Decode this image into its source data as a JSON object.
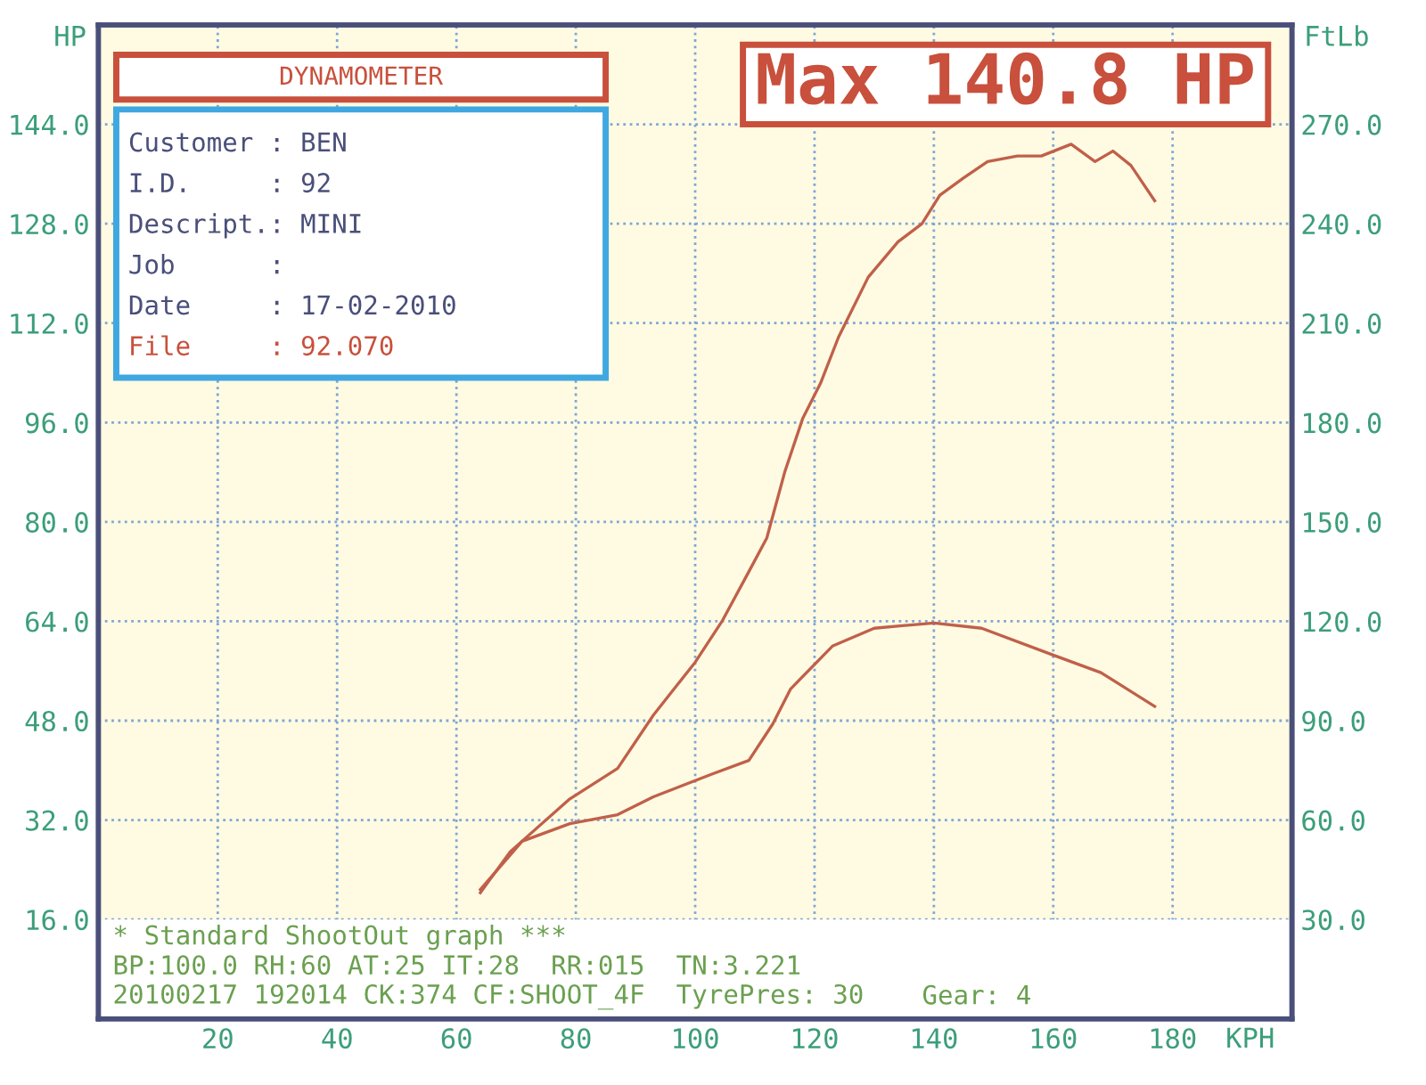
{
  "chart_data": {
    "type": "line",
    "ylabel": "HP",
    "y2label": "FtLb",
    "xlabel": "KPH",
    "xlim": [
      0,
      200
    ],
    "xticks": [
      20,
      40,
      60,
      80,
      100,
      120,
      140,
      160,
      180
    ],
    "ylim": [
      0,
      160
    ],
    "yticks": [
      {
        "value": 16,
        "label": "16.0"
      },
      {
        "value": 32,
        "label": "32.0"
      },
      {
        "value": 48,
        "label": "48.0"
      },
      {
        "value": 64,
        "label": "64.0"
      },
      {
        "value": 80,
        "label": "80.0"
      },
      {
        "value": 96,
        "label": "96.0"
      },
      {
        "value": 112,
        "label": "112.0"
      },
      {
        "value": 128,
        "label": "128.0"
      },
      {
        "value": 144,
        "label": "144.0"
      }
    ],
    "y2lim": [
      0,
      300
    ],
    "y2ticks": [
      {
        "value": 30,
        "label": "30.0"
      },
      {
        "value": 60,
        "label": "60.0"
      },
      {
        "value": 90,
        "label": "90.0"
      },
      {
        "value": 120,
        "label": "120.0"
      },
      {
        "value": 150,
        "label": "150.0"
      },
      {
        "value": 180,
        "label": "180.0"
      },
      {
        "value": 210,
        "label": "210.0"
      },
      {
        "value": 240,
        "label": "240.0"
      },
      {
        "value": 270,
        "label": "270.0"
      }
    ],
    "grid": true,
    "marker": "none",
    "line_style": "solid",
    "series": [
      {
        "color": "#c0604a",
        "x": [
          64,
          69,
          79,
          87,
          93,
          100,
          104.5,
          109,
          112,
          115,
          118,
          121,
          124,
          129,
          134,
          138,
          141,
          145,
          149,
          154,
          158,
          163,
          167,
          170,
          173,
          177
        ],
        "values": [
          20.3,
          26.9,
          35.4,
          40.3,
          48.9,
          57.4,
          64,
          72,
          77.4,
          88,
          96.6,
          102.3,
          109.7,
          119.4,
          125.1,
          128,
          132.6,
          135.4,
          138,
          138.9,
          138.9,
          140.8,
          138,
          139.7,
          137.4,
          131.7
        ]
      },
      {
        "color": "#c0604a",
        "axis": "y2",
        "x": [
          64,
          71,
          79,
          87,
          93,
          103,
          109,
          113,
          116,
          123,
          130,
          140,
          148,
          160,
          168,
          177
        ],
        "values": [
          39,
          53.6,
          58.9,
          61.6,
          67,
          74,
          78,
          89,
          99.6,
          112.5,
          117.9,
          119.5,
          117.9,
          109.8,
          104.5,
          94.3
        ]
      }
    ],
    "annotations": [
      "DYNAMOMETER",
      "Customer : BEN",
      "I.D.     : 92",
      "Descript.: MINI",
      "Job      :",
      "Date     : 17-02-2010",
      "File     : 92.070",
      "Max 140.8 HP",
      "* Standard ShootOut graph ***",
      "BP:100.0 RH:60 AT:25 IT:28  RR:015  TN:3.221",
      "20100217 192014 CK:374 CF:SHOOT_4F  TyrePres: 30",
      "Gear: 4"
    ]
  }
}
